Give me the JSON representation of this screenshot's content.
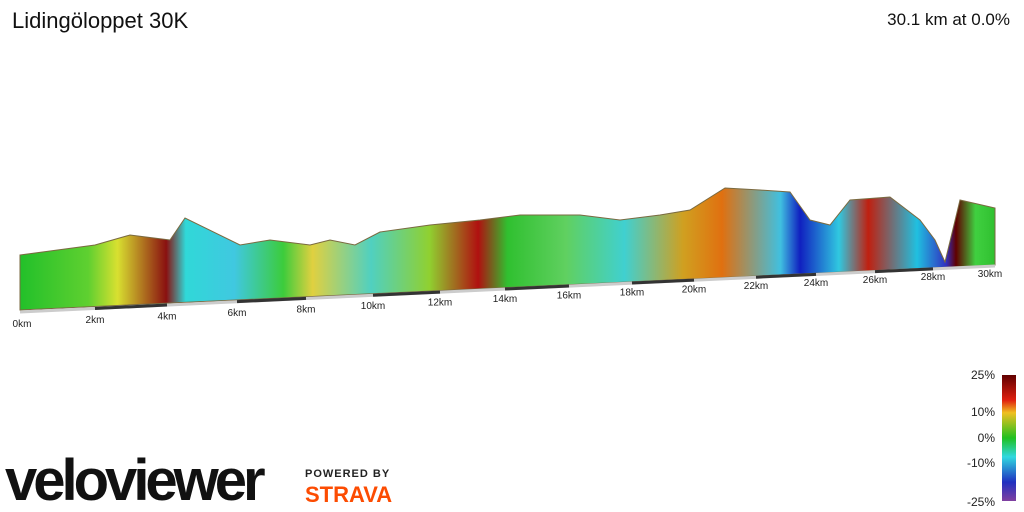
{
  "header": {
    "title": "Lidingöloppet 30K",
    "summary": "30.1 km at 0.0%"
  },
  "profile": {
    "distance_labels": [
      "0km",
      "2km",
      "4km",
      "6km",
      "8km",
      "10km",
      "12km",
      "14km",
      "16km",
      "18km",
      "20km",
      "22km",
      "24km",
      "26km",
      "28km",
      "30km"
    ]
  },
  "legend": {
    "labels": [
      "25%",
      "10%",
      "0%",
      "-10%",
      "-25%"
    ]
  },
  "branding": {
    "logo": "veloviewer",
    "powered_by": "POWERED BY",
    "partner": "STRAVA"
  }
}
